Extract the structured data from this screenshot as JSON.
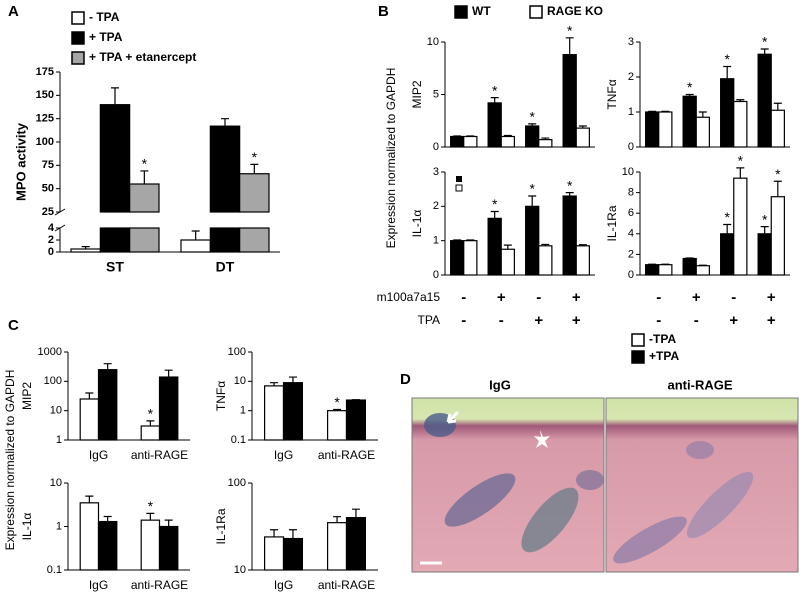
{
  "figure": {
    "panel_labels": [
      "A",
      "B",
      "C",
      "D"
    ],
    "shared_ylabel": "Expression normalized to GAPDH",
    "conditions": [
      {
        "label": "m100a7a15",
        "signs": [
          "-",
          "+",
          "-",
          "+"
        ]
      },
      {
        "label": "TPA",
        "signs": [
          "-",
          "-",
          "+",
          "+"
        ]
      }
    ],
    "image_labels": [
      "IgG",
      "anti-RAGE"
    ]
  },
  "chart_data": [
    {
      "type": "bar",
      "ylabel": "MPO activity",
      "categories": [
        "ST",
        "DT"
      ],
      "series": [
        {
          "name": "- TPA",
          "color": "#ffffff",
          "values": [
            0.5,
            2
          ],
          "errors": [
            0.4,
            1.5
          ]
        },
        {
          "name": "+ TPA",
          "color": "#000000",
          "values": [
            140,
            117
          ],
          "errors": [
            18,
            8
          ]
        },
        {
          "name": "+ TPA + etanercept",
          "color": "#a6a6a6",
          "values": [
            55,
            66
          ],
          "errors": [
            14,
            10
          ],
          "significance": [
            "*",
            "*"
          ]
        }
      ],
      "ylim": [
        0,
        175
      ],
      "ybreak": [
        4,
        25
      ],
      "yticks": [
        0,
        2,
        4,
        25,
        50,
        75,
        100,
        125,
        150,
        175
      ],
      "legend": "upper left"
    },
    {
      "type": "bar",
      "ylabel": "MIP2",
      "categories": [
        null,
        null,
        null,
        null
      ],
      "series": [
        {
          "name": "WT",
          "color": "#000000",
          "values": [
            1,
            4.2,
            2,
            8.8
          ],
          "errors": [
            0.05,
            0.5,
            0.2,
            1.6
          ],
          "significance": [
            null,
            "*",
            "*",
            "*"
          ]
        },
        {
          "name": "RAGE KO",
          "color": "#ffffff",
          "values": [
            1,
            1,
            0.7,
            1.8
          ],
          "errors": [
            0.05,
            0.1,
            0.15,
            0.2
          ]
        }
      ],
      "ylim": [
        0,
        10
      ],
      "yticks": [
        0,
        5,
        10
      ],
      "legend": "top"
    },
    {
      "type": "bar",
      "ylabel": "TNFα",
      "categories": [
        null,
        null,
        null,
        null
      ],
      "series": [
        {
          "name": "WT",
          "color": "#000000",
          "values": [
            1,
            1.45,
            1.95,
            2.65
          ],
          "errors": [
            0.02,
            0.05,
            0.35,
            0.15
          ],
          "significance": [
            null,
            "*",
            "*",
            "*"
          ]
        },
        {
          "name": "RAGE KO",
          "color": "#ffffff",
          "values": [
            1,
            0.85,
            1.3,
            1.05
          ],
          "errors": [
            0.02,
            0.15,
            0.05,
            0.2
          ]
        }
      ],
      "ylim": [
        0,
        3
      ],
      "yticks": [
        0,
        1,
        2,
        3
      ]
    },
    {
      "type": "bar",
      "ylabel": "IL-1α",
      "categories": [
        null,
        null,
        null,
        null
      ],
      "series": [
        {
          "name": "WT",
          "color": "#000000",
          "values": [
            1,
            1.65,
            2,
            2.3
          ],
          "errors": [
            0.02,
            0.2,
            0.3,
            0.1
          ],
          "significance": [
            null,
            "*",
            "*",
            "*"
          ]
        },
        {
          "name": "RAGE KO",
          "color": "#ffffff",
          "values": [
            1,
            0.75,
            0.85,
            0.85
          ],
          "errors": [
            0.02,
            0.12,
            0.04,
            0.03
          ]
        }
      ],
      "ylim": [
        0,
        3
      ],
      "yticks": [
        0,
        1,
        2,
        3
      ]
    },
    {
      "type": "bar",
      "ylabel": "IL-1Ra",
      "categories": [
        null,
        null,
        null,
        null
      ],
      "series": [
        {
          "name": "WT",
          "color": "#000000",
          "values": [
            1,
            1.6,
            4,
            4
          ],
          "errors": [
            0.05,
            0.05,
            0.9,
            0.7
          ],
          "significance": [
            null,
            null,
            "*",
            "*"
          ]
        },
        {
          "name": "RAGE KO",
          "color": "#ffffff",
          "values": [
            1,
            0.9,
            9.4,
            7.6
          ],
          "errors": [
            0.05,
            0.05,
            1,
            1.5
          ],
          "significance": [
            null,
            null,
            "*",
            "*"
          ]
        }
      ],
      "ylim": [
        0,
        10
      ],
      "yticks": [
        0,
        2,
        4,
        6,
        8,
        10
      ]
    },
    {
      "type": "bar",
      "ylabel": "MIP2",
      "log": true,
      "categories": [
        "IgG",
        "anti-RAGE"
      ],
      "series": [
        {
          "name": "-TPA",
          "color": "#ffffff",
          "values": [
            25,
            3
          ],
          "errors": [
            15,
            1.5
          ],
          "significance": [
            null,
            "*"
          ]
        },
        {
          "name": "+TPA",
          "color": "#000000",
          "values": [
            250,
            140
          ],
          "errors": [
            150,
            100
          ]
        }
      ],
      "ylim": [
        1,
        1000
      ],
      "yticks": [
        1,
        10,
        100,
        1000
      ]
    },
    {
      "type": "bar",
      "ylabel": "TNFα",
      "log": true,
      "categories": [
        "IgG",
        "anti-RAGE"
      ],
      "series": [
        {
          "name": "-TPA",
          "color": "#ffffff",
          "values": [
            7,
            1
          ],
          "errors": [
            2,
            0.1
          ],
          "significance": [
            null,
            "*"
          ]
        },
        {
          "name": "+TPA",
          "color": "#000000",
          "values": [
            9,
            2.3
          ],
          "errors": [
            5,
            0.05
          ]
        }
      ],
      "ylim": [
        0.1,
        100
      ],
      "yticks": [
        0.1,
        1,
        10,
        100
      ],
      "legend": "right"
    },
    {
      "type": "bar",
      "ylabel": "IL-1α",
      "log": true,
      "categories": [
        "IgG",
        "anti-RAGE"
      ],
      "series": [
        {
          "name": "-TPA",
          "color": "#ffffff",
          "values": [
            3.5,
            1.4
          ],
          "errors": [
            1.5,
            0.6
          ],
          "significance": [
            null,
            "*"
          ]
        },
        {
          "name": "+TPA",
          "color": "#000000",
          "values": [
            1.3,
            1
          ],
          "errors": [
            0.4,
            0.4
          ]
        }
      ],
      "ylim": [
        0.1,
        10
      ],
      "yticks": [
        0.1,
        1,
        10
      ]
    },
    {
      "type": "bar",
      "ylabel": "IL-1Ra",
      "log": true,
      "categories": [
        "IgG",
        "anti-RAGE"
      ],
      "series": [
        {
          "name": "-TPA",
          "color": "#ffffff",
          "values": [
            24,
            35
          ],
          "errors": [
            5,
            6
          ]
        },
        {
          "name": "+TPA",
          "color": "#000000",
          "values": [
            23,
            40
          ],
          "errors": [
            6,
            10
          ]
        }
      ],
      "ylim": [
        10,
        100
      ],
      "yticks": [
        10,
        100
      ]
    }
  ]
}
